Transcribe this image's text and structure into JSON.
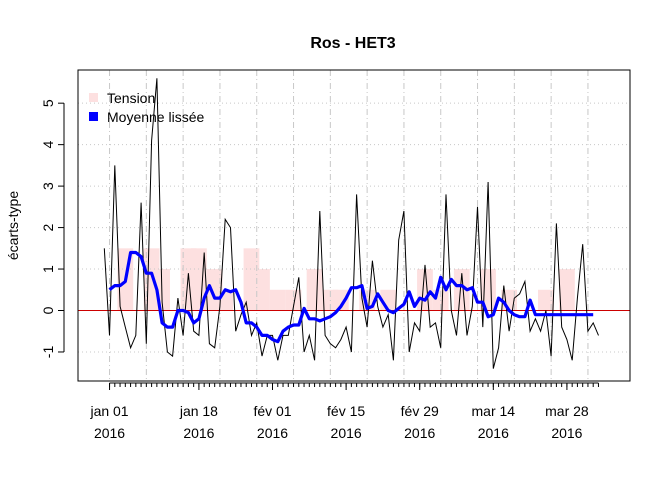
{
  "chart_data": {
    "type": "line",
    "title": "Ros - HET3",
    "xlabel": "",
    "ylabel": "écarts-type",
    "ylim": [
      -1.7,
      5.8
    ],
    "xlim": [
      "2015-12-26",
      "2016-04-09"
    ],
    "y_ticks": [
      -1,
      0,
      1,
      2,
      3,
      4,
      5
    ],
    "x_ticks": [
      {
        "date": "2016-01-01",
        "line1": "jan 01",
        "line2": "2016"
      },
      {
        "date": "2016-01-18",
        "line1": "jan 18",
        "line2": "2016"
      },
      {
        "date": "2016-02-01",
        "line1": "fév 01",
        "line2": "2016"
      },
      {
        "date": "2016-02-15",
        "line1": "fév 15",
        "line2": "2016"
      },
      {
        "date": "2016-02-29",
        "line1": "fév 29",
        "line2": "2016"
      },
      {
        "date": "2016-03-14",
        "line1": "mar 14",
        "line2": "2016"
      },
      {
        "date": "2016-03-28",
        "line1": "mar 28",
        "line2": "2016"
      }
    ],
    "grid": true,
    "reference_line": {
      "y": 0,
      "color": "#cc0000"
    },
    "legend": {
      "position": "top-left",
      "entries": [
        {
          "label": "Tension",
          "color": "#fde0e0"
        },
        {
          "label": "Moyenne lissée",
          "color": "#0000ff"
        }
      ]
    },
    "series": [
      {
        "name": "Tension",
        "style": "bars",
        "color": "#fde0e0",
        "x": [
          "2016-01-04",
          "2016-01-09",
          "2016-01-11",
          "2016-01-16",
          "2016-01-18",
          "2016-01-21",
          "2016-01-23",
          "2016-01-28",
          "2016-01-30",
          "2016-02-02",
          "2016-02-05",
          "2016-02-09",
          "2016-02-12",
          "2016-02-14",
          "2016-02-19",
          "2016-02-23",
          "2016-03-01",
          "2016-03-04",
          "2016-03-08",
          "2016-03-13",
          "2016-03-17",
          "2016-03-24",
          "2016-03-28"
        ],
        "values": [
          1.5,
          1.5,
          1.0,
          1.5,
          1.5,
          1.0,
          0.5,
          1.5,
          1.0,
          0.5,
          0.5,
          1.0,
          0.5,
          0.5,
          0.5,
          0.5,
          1.0,
          0.5,
          1.0,
          1.0,
          0.5,
          0.5,
          1.0
        ]
      },
      {
        "name": "écarts-type",
        "style": "line",
        "color": "#000000",
        "x": [
          "2015-12-31",
          "2016-01-01",
          "2016-01-02",
          "2016-01-03",
          "2016-01-04",
          "2016-01-05",
          "2016-01-06",
          "2016-01-07",
          "2016-01-08",
          "2016-01-09",
          "2016-01-10",
          "2016-01-11",
          "2016-01-12",
          "2016-01-13",
          "2016-01-14",
          "2016-01-15",
          "2016-01-16",
          "2016-01-17",
          "2016-01-18",
          "2016-01-19",
          "2016-01-20",
          "2016-01-21",
          "2016-01-22",
          "2016-01-23",
          "2016-01-24",
          "2016-01-25",
          "2016-01-26",
          "2016-01-27",
          "2016-01-28",
          "2016-01-29",
          "2016-01-30",
          "2016-01-31",
          "2016-02-01",
          "2016-02-02",
          "2016-02-03",
          "2016-02-04",
          "2016-02-05",
          "2016-02-06",
          "2016-02-07",
          "2016-02-08",
          "2016-02-09",
          "2016-02-10",
          "2016-02-11",
          "2016-02-12",
          "2016-02-13",
          "2016-02-14",
          "2016-02-15",
          "2016-02-16",
          "2016-02-17",
          "2016-02-18",
          "2016-02-19",
          "2016-02-20",
          "2016-02-21",
          "2016-02-22",
          "2016-02-23",
          "2016-02-24",
          "2016-02-25",
          "2016-02-26",
          "2016-02-27",
          "2016-02-28",
          "2016-02-29",
          "2016-03-01",
          "2016-03-02",
          "2016-03-03",
          "2016-03-04",
          "2016-03-05",
          "2016-03-06",
          "2016-03-07",
          "2016-03-08",
          "2016-03-09",
          "2016-03-10",
          "2016-03-11",
          "2016-03-12",
          "2016-03-13",
          "2016-03-14",
          "2016-03-15",
          "2016-03-16",
          "2016-03-17",
          "2016-03-18",
          "2016-03-19",
          "2016-03-20",
          "2016-03-21",
          "2016-03-22",
          "2016-03-23",
          "2016-03-24",
          "2016-03-25",
          "2016-03-26",
          "2016-03-27",
          "2016-03-28",
          "2016-03-29",
          "2016-03-30",
          "2016-03-31",
          "2016-04-01",
          "2016-04-02",
          "2016-04-03"
        ],
        "values": [
          1.5,
          -0.6,
          3.5,
          0.1,
          -0.4,
          -0.9,
          -0.6,
          2.6,
          -0.8,
          4.1,
          5.6,
          0.2,
          -1.0,
          -1.1,
          0.3,
          -0.6,
          0.9,
          -0.5,
          -0.6,
          1.4,
          -0.8,
          -0.9,
          0.1,
          2.2,
          2.0,
          -0.5,
          -0.1,
          0.2,
          -0.6,
          -0.3,
          -1.1,
          -0.6,
          -0.6,
          -1.2,
          -0.6,
          -0.6,
          0.1,
          0.8,
          -1.0,
          -0.6,
          -1.2,
          2.4,
          -0.6,
          -0.8,
          -0.9,
          -0.7,
          -0.4,
          -1.0,
          2.8,
          0.3,
          -0.4,
          1.2,
          0.1,
          -0.4,
          -0.1,
          -1.2,
          1.7,
          2.4,
          -1.0,
          -0.3,
          -0.5,
          1.1,
          -0.4,
          -0.3,
          -0.9,
          2.8,
          0.0,
          -0.6,
          0.9,
          -0.6,
          0.1,
          2.5,
          -0.4,
          3.1,
          -1.4,
          -0.9,
          0.6,
          -0.5,
          0.3,
          0.4,
          0.7,
          -0.5,
          -0.2,
          -0.5,
          0.0,
          -1.1,
          2.1,
          -0.4,
          -0.7,
          -1.2,
          0.3,
          1.6,
          -0.5,
          -0.3,
          -0.6
        ]
      },
      {
        "name": "Moyenne lissée",
        "style": "line",
        "color": "#0000ff",
        "x": [
          "2016-01-01",
          "2016-01-02",
          "2016-01-03",
          "2016-01-04",
          "2016-01-05",
          "2016-01-06",
          "2016-01-07",
          "2016-01-08",
          "2016-01-09",
          "2016-01-10",
          "2016-01-11",
          "2016-01-12",
          "2016-01-13",
          "2016-01-14",
          "2016-01-15",
          "2016-01-16",
          "2016-01-17",
          "2016-01-18",
          "2016-01-19",
          "2016-01-20",
          "2016-01-21",
          "2016-01-22",
          "2016-01-23",
          "2016-01-24",
          "2016-01-25",
          "2016-01-26",
          "2016-01-27",
          "2016-01-28",
          "2016-01-29",
          "2016-01-30",
          "2016-01-31",
          "2016-02-01",
          "2016-02-02",
          "2016-02-03",
          "2016-02-04",
          "2016-02-05",
          "2016-02-06",
          "2016-02-07",
          "2016-02-08",
          "2016-02-09",
          "2016-02-10",
          "2016-02-11",
          "2016-02-12",
          "2016-02-13",
          "2016-02-14",
          "2016-02-15",
          "2016-02-16",
          "2016-02-17",
          "2016-02-18",
          "2016-02-19",
          "2016-02-20",
          "2016-02-21",
          "2016-02-22",
          "2016-02-23",
          "2016-02-24",
          "2016-02-25",
          "2016-02-26",
          "2016-02-27",
          "2016-02-28",
          "2016-02-29",
          "2016-03-01",
          "2016-03-02",
          "2016-03-03",
          "2016-03-04",
          "2016-03-05",
          "2016-03-06",
          "2016-03-07",
          "2016-03-08",
          "2016-03-09",
          "2016-03-10",
          "2016-03-11",
          "2016-03-12",
          "2016-03-13",
          "2016-03-14",
          "2016-03-15",
          "2016-03-16",
          "2016-03-17",
          "2016-03-18",
          "2016-03-19",
          "2016-03-20",
          "2016-03-21",
          "2016-03-22",
          "2016-03-23",
          "2016-03-24",
          "2016-03-25",
          "2016-03-26",
          "2016-03-27",
          "2016-03-28",
          "2016-03-29",
          "2016-03-30",
          "2016-03-31",
          "2016-04-01",
          "2016-04-02"
        ],
        "values": [
          0.5,
          0.6,
          0.6,
          0.7,
          1.4,
          1.4,
          1.3,
          0.9,
          0.9,
          0.5,
          -0.3,
          -0.4,
          -0.4,
          0.0,
          0.0,
          -0.05,
          -0.3,
          -0.2,
          0.3,
          0.6,
          0.3,
          0.3,
          0.5,
          0.45,
          0.5,
          0.2,
          -0.3,
          -0.3,
          -0.4,
          -0.6,
          -0.6,
          -0.7,
          -0.75,
          -0.5,
          -0.4,
          -0.35,
          -0.35,
          0.05,
          -0.2,
          -0.2,
          -0.25,
          -0.2,
          -0.15,
          -0.05,
          0.1,
          0.3,
          0.55,
          0.55,
          0.6,
          0.05,
          0.1,
          0.4,
          0.2,
          0.0,
          -0.05,
          0.05,
          0.15,
          0.45,
          0.1,
          0.3,
          0.25,
          0.45,
          0.3,
          0.8,
          0.5,
          0.75,
          0.6,
          0.6,
          0.5,
          0.55,
          0.2,
          0.2,
          -0.15,
          -0.1,
          0.3,
          0.2,
          0.0,
          -0.1,
          -0.15,
          -0.15,
          0.25,
          -0.1,
          -0.1,
          -0.1,
          -0.1,
          -0.1,
          -0.1,
          -0.1,
          -0.1,
          -0.1,
          -0.1,
          -0.1,
          -0.1
        ]
      }
    ]
  }
}
